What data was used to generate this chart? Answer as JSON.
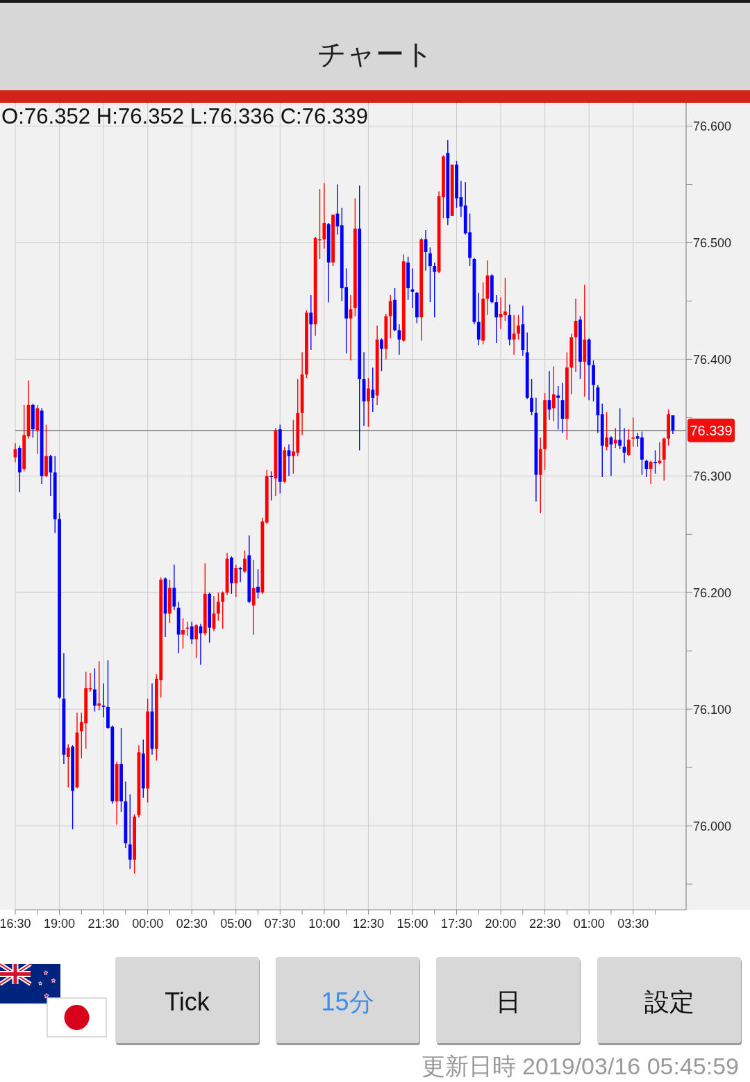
{
  "chart_data": {
    "type": "candlestick",
    "title": "チャート",
    "subtitle": "O:76.352 H:76.352 L:76.336 C:76.339",
    "x": [
      "2019-03-14T16:30",
      "2019-03-14T16:45",
      "2019-03-14T17:00",
      "2019-03-14T17:15",
      "2019-03-14T17:30",
      "2019-03-14T17:45",
      "2019-03-14T18:00",
      "2019-03-14T18:15",
      "2019-03-14T18:30",
      "2019-03-14T18:45",
      "2019-03-14T19:00",
      "2019-03-14T19:15",
      "2019-03-14T19:30",
      "2019-03-14T19:45",
      "2019-03-14T20:00",
      "2019-03-14T20:15",
      "2019-03-14T20:30",
      "2019-03-14T20:45",
      "2019-03-14T21:00",
      "2019-03-14T21:15",
      "2019-03-14T21:30",
      "2019-03-14T21:45",
      "2019-03-14T22:00",
      "2019-03-14T22:15",
      "2019-03-14T22:30",
      "2019-03-14T22:45",
      "2019-03-14T23:00",
      "2019-03-14T23:15",
      "2019-03-14T23:30",
      "2019-03-14T23:45",
      "2019-03-15T00:00",
      "2019-03-15T00:15",
      "2019-03-15T00:30",
      "2019-03-15T00:45",
      "2019-03-15T01:00",
      "2019-03-15T01:15",
      "2019-03-15T01:30",
      "2019-03-15T01:45",
      "2019-03-15T02:00",
      "2019-03-15T02:15",
      "2019-03-15T02:30",
      "2019-03-15T02:45",
      "2019-03-15T03:00",
      "2019-03-15T03:15",
      "2019-03-15T03:30",
      "2019-03-15T03:45",
      "2019-03-15T04:00",
      "2019-03-15T04:15",
      "2019-03-15T04:30",
      "2019-03-15T04:45",
      "2019-03-15T05:00",
      "2019-03-15T05:15",
      "2019-03-15T05:30",
      "2019-03-15T05:45",
      "2019-03-15T06:00",
      "2019-03-15T06:15",
      "2019-03-15T06:30",
      "2019-03-15T06:45",
      "2019-03-15T07:00",
      "2019-03-15T07:15",
      "2019-03-15T07:30",
      "2019-03-15T07:45",
      "2019-03-15T08:00",
      "2019-03-15T08:15",
      "2019-03-15T08:30",
      "2019-03-15T08:45",
      "2019-03-15T09:00",
      "2019-03-15T09:15",
      "2019-03-15T09:30",
      "2019-03-15T09:45",
      "2019-03-15T10:00",
      "2019-03-15T10:15",
      "2019-03-15T10:30",
      "2019-03-15T10:45",
      "2019-03-15T11:00",
      "2019-03-15T11:15",
      "2019-03-15T11:30",
      "2019-03-15T11:45",
      "2019-03-15T12:00",
      "2019-03-15T12:15",
      "2019-03-15T12:30",
      "2019-03-15T12:45",
      "2019-03-15T13:00",
      "2019-03-15T13:15",
      "2019-03-15T13:30",
      "2019-03-15T13:45",
      "2019-03-15T14:00",
      "2019-03-15T14:15",
      "2019-03-15T14:30",
      "2019-03-15T14:45",
      "2019-03-15T15:00",
      "2019-03-15T15:15",
      "2019-03-15T15:30",
      "2019-03-15T15:45",
      "2019-03-15T16:00",
      "2019-03-15T16:15",
      "2019-03-15T16:30",
      "2019-03-15T16:45",
      "2019-03-15T17:00",
      "2019-03-15T17:15",
      "2019-03-15T17:30",
      "2019-03-15T17:45",
      "2019-03-15T18:00",
      "2019-03-15T18:15",
      "2019-03-15T18:30",
      "2019-03-15T18:45",
      "2019-03-15T19:00",
      "2019-03-15T19:15",
      "2019-03-15T19:30",
      "2019-03-15T19:45",
      "2019-03-15T20:00",
      "2019-03-15T20:15",
      "2019-03-15T20:30",
      "2019-03-15T20:45",
      "2019-03-15T21:00",
      "2019-03-15T21:15",
      "2019-03-15T21:30",
      "2019-03-15T21:45",
      "2019-03-15T22:00",
      "2019-03-15T22:15",
      "2019-03-15T22:30",
      "2019-03-15T22:45",
      "2019-03-15T23:00",
      "2019-03-15T23:15",
      "2019-03-15T23:30",
      "2019-03-15T23:45",
      "2019-03-16T00:00",
      "2019-03-16T00:15",
      "2019-03-16T00:30",
      "2019-03-16T00:45",
      "2019-03-16T01:00",
      "2019-03-16T01:15",
      "2019-03-16T01:30",
      "2019-03-16T01:45",
      "2019-03-16T02:00",
      "2019-03-16T02:15",
      "2019-03-16T02:30",
      "2019-03-16T02:45",
      "2019-03-16T03:00",
      "2019-03-16T03:15",
      "2019-03-16T03:30",
      "2019-03-16T03:45",
      "2019-03-16T04:00",
      "2019-03-16T04:15",
      "2019-03-16T04:30",
      "2019-03-16T04:45",
      "2019-03-16T05:00",
      "2019-03-16T05:15",
      "2019-03-16T05:30",
      "2019-03-16T05:45"
    ],
    "ohlc": [
      [
        76.316,
        76.328,
        76.312,
        76.323
      ],
      [
        76.324,
        76.326,
        76.286,
        76.303
      ],
      [
        76.306,
        76.361,
        76.304,
        76.335
      ],
      [
        76.334,
        76.382,
        76.332,
        76.361
      ],
      [
        76.361,
        76.362,
        76.333,
        76.34
      ],
      [
        76.339,
        76.361,
        76.319,
        76.358
      ],
      [
        76.356,
        76.358,
        76.293,
        76.3
      ],
      [
        76.3,
        76.344,
        76.299,
        76.317
      ],
      [
        76.317,
        76.318,
        76.283,
        76.303
      ],
      [
        76.303,
        76.317,
        76.251,
        76.263
      ],
      [
        76.263,
        76.268,
        76.109,
        76.11
      ],
      [
        76.109,
        76.148,
        76.053,
        76.061
      ],
      [
        76.059,
        76.07,
        76.033,
        76.067
      ],
      [
        76.068,
        76.069,
        75.997,
        76.03
      ],
      [
        76.033,
        76.097,
        76.032,
        76.08
      ],
      [
        76.081,
        76.097,
        76.058,
        76.089
      ],
      [
        76.088,
        76.132,
        76.066,
        76.118
      ],
      [
        76.117,
        76.131,
        76.115,
        76.118
      ],
      [
        76.117,
        76.135,
        76.098,
        76.103
      ],
      [
        76.103,
        76.141,
        76.099,
        76.105
      ],
      [
        76.103,
        76.122,
        76.093,
        76.102
      ],
      [
        76.102,
        76.142,
        76.083,
        76.084
      ],
      [
        76.085,
        76.086,
        76.019,
        76.021
      ],
      [
        76.021,
        76.055,
        76.001,
        76.053
      ],
      [
        76.053,
        76.084,
        76.012,
        76.021
      ],
      [
        76.021,
        76.038,
        75.981,
        75.985
      ],
      [
        75.984,
        76.027,
        75.963,
        75.971
      ],
      [
        75.971,
        76.01,
        75.959,
        76.008
      ],
      [
        76.009,
        76.069,
        76.007,
        76.063
      ],
      [
        76.062,
        76.074,
        76.024,
        76.032
      ],
      [
        76.032,
        76.109,
        76.02,
        76.098
      ],
      [
        76.098,
        76.122,
        76.061,
        76.066
      ],
      [
        76.066,
        76.13,
        76.056,
        76.126
      ],
      [
        76.125,
        76.213,
        76.11,
        76.211
      ],
      [
        76.212,
        76.213,
        76.162,
        76.182
      ],
      [
        76.182,
        76.211,
        76.174,
        76.204
      ],
      [
        76.204,
        76.224,
        76.185,
        76.188
      ],
      [
        76.187,
        76.192,
        76.148,
        76.164
      ],
      [
        76.164,
        76.178,
        76.152,
        76.168
      ],
      [
        76.169,
        76.175,
        76.163,
        76.17
      ],
      [
        76.171,
        76.175,
        76.156,
        76.16
      ],
      [
        76.16,
        76.173,
        76.144,
        76.172
      ],
      [
        76.171,
        76.173,
        76.138,
        76.165
      ],
      [
        76.165,
        76.225,
        76.163,
        76.199
      ],
      [
        76.199,
        76.2,
        76.157,
        76.17
      ],
      [
        76.169,
        76.197,
        76.167,
        76.182
      ],
      [
        76.182,
        76.2,
        76.176,
        76.192
      ],
      [
        76.192,
        76.201,
        76.169,
        76.2
      ],
      [
        76.2,
        76.234,
        76.198,
        76.229
      ],
      [
        76.23,
        76.231,
        76.199,
        76.208
      ],
      [
        76.208,
        76.224,
        76.196,
        76.221
      ],
      [
        76.221,
        76.222,
        76.209,
        76.22
      ],
      [
        76.218,
        76.236,
        76.217,
        76.229
      ],
      [
        76.232,
        76.249,
        76.191,
        76.192
      ],
      [
        76.189,
        76.228,
        76.164,
        76.204
      ],
      [
        76.205,
        76.22,
        76.195,
        76.2
      ],
      [
        76.2,
        76.264,
        76.199,
        76.261
      ],
      [
        76.26,
        76.305,
        76.259,
        76.3
      ],
      [
        76.3,
        76.304,
        76.279,
        76.299
      ],
      [
        76.298,
        76.341,
        76.283,
        76.339
      ],
      [
        76.34,
        76.344,
        76.285,
        76.295
      ],
      [
        76.295,
        76.325,
        76.294,
        76.322
      ],
      [
        76.322,
        76.327,
        76.3,
        76.317
      ],
      [
        76.317,
        76.348,
        76.302,
        76.321
      ],
      [
        76.32,
        76.383,
        76.317,
        76.354
      ],
      [
        76.354,
        76.406,
        76.335,
        76.387
      ],
      [
        76.387,
        76.442,
        76.384,
        76.44
      ],
      [
        76.44,
        76.455,
        76.408,
        76.43
      ],
      [
        76.43,
        76.505,
        76.42,
        76.504
      ],
      [
        76.502,
        76.546,
        76.486,
        76.503
      ],
      [
        76.503,
        76.551,
        76.495,
        76.517
      ],
      [
        76.516,
        76.517,
        76.449,
        76.483
      ],
      [
        76.483,
        76.524,
        76.48,
        76.524
      ],
      [
        76.525,
        76.55,
        76.507,
        76.514
      ],
      [
        76.515,
        76.53,
        76.45,
        76.461
      ],
      [
        76.462,
        76.478,
        76.405,
        76.435
      ],
      [
        76.435,
        76.455,
        76.399,
        76.443
      ],
      [
        76.444,
        76.538,
        76.437,
        76.512
      ],
      [
        76.512,
        76.549,
        76.322,
        76.383
      ],
      [
        76.383,
        76.406,
        76.343,
        76.364
      ],
      [
        76.364,
        76.384,
        76.342,
        76.375
      ],
      [
        76.374,
        76.393,
        76.355,
        76.367
      ],
      [
        76.369,
        76.429,
        76.361,
        76.417
      ],
      [
        76.417,
        76.418,
        76.39,
        76.409
      ],
      [
        76.409,
        76.439,
        76.4,
        76.437
      ],
      [
        76.437,
        76.455,
        76.418,
        76.45
      ],
      [
        76.451,
        76.461,
        76.424,
        76.425
      ],
      [
        76.425,
        76.43,
        76.404,
        76.417
      ],
      [
        76.416,
        76.49,
        76.415,
        76.484
      ],
      [
        76.483,
        76.488,
        76.451,
        76.461
      ],
      [
        76.46,
        76.478,
        76.444,
        76.458
      ],
      [
        76.457,
        76.458,
        76.431,
        76.436
      ],
      [
        76.436,
        76.504,
        76.416,
        76.503
      ],
      [
        76.503,
        76.511,
        76.476,
        76.492
      ],
      [
        76.491,
        76.496,
        76.449,
        76.48
      ],
      [
        76.48,
        76.483,
        76.436,
        76.475
      ],
      [
        76.475,
        76.544,
        76.474,
        76.54
      ],
      [
        76.539,
        76.575,
        76.521,
        76.574
      ],
      [
        76.577,
        76.588,
        76.515,
        76.521
      ],
      [
        76.523,
        76.567,
        76.523,
        76.567
      ],
      [
        76.567,
        76.57,
        76.53,
        76.538
      ],
      [
        76.539,
        76.553,
        76.522,
        76.531
      ],
      [
        76.532,
        76.552,
        76.507,
        76.508
      ],
      [
        76.509,
        76.525,
        76.48,
        76.487
      ],
      [
        76.486,
        76.487,
        76.43,
        76.432
      ],
      [
        76.432,
        76.457,
        76.412,
        76.417
      ],
      [
        76.416,
        76.466,
        76.413,
        76.452
      ],
      [
        76.452,
        76.485,
        76.438,
        76.472
      ],
      [
        76.472,
        76.473,
        76.448,
        76.449
      ],
      [
        76.449,
        76.455,
        76.414,
        76.436
      ],
      [
        76.436,
        76.453,
        76.426,
        76.439
      ],
      [
        76.438,
        76.47,
        76.433,
        76.441
      ],
      [
        76.438,
        76.447,
        76.412,
        76.417
      ],
      [
        76.417,
        76.438,
        76.404,
        76.422
      ],
      [
        76.422,
        76.438,
        76.417,
        76.429
      ],
      [
        76.43,
        76.446,
        76.403,
        76.408
      ],
      [
        76.406,
        76.423,
        76.366,
        76.367
      ],
      [
        76.367,
        76.383,
        76.352,
        76.355
      ],
      [
        76.354,
        76.367,
        76.278,
        76.301
      ],
      [
        76.301,
        76.333,
        76.268,
        76.323
      ],
      [
        76.323,
        76.371,
        76.305,
        76.365
      ],
      [
        76.365,
        76.39,
        76.348,
        76.357
      ],
      [
        76.358,
        76.394,
        76.347,
        76.37
      ],
      [
        76.369,
        76.377,
        76.34,
        76.367
      ],
      [
        76.365,
        76.38,
        76.337,
        76.349
      ],
      [
        76.349,
        76.406,
        76.331,
        76.393
      ],
      [
        76.393,
        76.422,
        76.37,
        76.419
      ],
      [
        76.419,
        76.452,
        76.389,
        76.433
      ],
      [
        76.434,
        76.437,
        76.383,
        76.398
      ],
      [
        76.398,
        76.464,
        76.368,
        76.417
      ],
      [
        76.417,
        76.418,
        76.365,
        76.395
      ],
      [
        76.395,
        76.399,
        76.364,
        76.378
      ],
      [
        76.376,
        76.378,
        76.337,
        76.352
      ],
      [
        76.353,
        76.362,
        76.299,
        76.326
      ],
      [
        76.325,
        76.355,
        76.322,
        76.333
      ],
      [
        76.333,
        76.334,
        76.3,
        76.327
      ],
      [
        76.328,
        76.341,
        76.324,
        76.331
      ],
      [
        76.331,
        76.358,
        76.323,
        76.326
      ],
      [
        76.325,
        76.341,
        76.311,
        76.32
      ],
      [
        76.318,
        76.34,
        76.317,
        76.331
      ],
      [
        76.332,
        76.35,
        76.325,
        76.333
      ],
      [
        76.334,
        76.337,
        76.325,
        76.332
      ],
      [
        76.333,
        76.338,
        76.301,
        76.314
      ],
      [
        76.313,
        76.314,
        76.299,
        76.306
      ],
      [
        76.306,
        76.313,
        76.293,
        76.312
      ],
      [
        76.312,
        76.322,
        76.302,
        76.311
      ],
      [
        76.311,
        76.329,
        76.31,
        76.313
      ],
      [
        76.314,
        76.333,
        76.296,
        76.332
      ],
      [
        76.332,
        76.357,
        76.326,
        76.353
      ],
      [
        76.352,
        76.352,
        76.336,
        76.339
      ]
    ],
    "colors": [
      "#ff0000",
      "#0000ff",
      "#ff0000",
      "#ff0000",
      "#0000ff",
      "#ff0000",
      "#0000ff",
      "#ff0000",
      "#0000ff",
      "#0000ff",
      "#0000ff",
      "#0000ff",
      "#ff0000",
      "#0000ff",
      "#ff0000",
      "#ff0000",
      "#ff0000",
      "#ff0000",
      "#0000ff",
      "#ff0000",
      "#0000ff",
      "#0000ff",
      "#0000ff",
      "#ff0000",
      "#0000ff",
      "#0000ff",
      "#0000ff",
      "#ff0000",
      "#ff0000",
      "#0000ff",
      "#ff0000",
      "#0000ff",
      "#ff0000",
      "#ff0000",
      "#0000ff",
      "#ff0000",
      "#0000ff",
      "#0000ff",
      "#ff0000",
      "#ff0000",
      "#0000ff",
      "#ff0000",
      "#0000ff",
      "#ff0000",
      "#0000ff",
      "#ff0000",
      "#ff0000",
      "#ff0000",
      "#ff0000",
      "#0000ff",
      "#ff0000",
      "#0000ff",
      "#ff0000",
      "#0000ff",
      "#ff0000",
      "#0000ff",
      "#ff0000",
      "#ff0000",
      "#0000ff",
      "#ff0000",
      "#0000ff",
      "#ff0000",
      "#0000ff",
      "#ff0000",
      "#ff0000",
      "#ff0000",
      "#ff0000",
      "#0000ff",
      "#ff0000",
      "#ff0000",
      "#ff0000",
      "#0000ff",
      "#ff0000",
      "#0000ff",
      "#0000ff",
      "#0000ff",
      "#ff0000",
      "#ff0000",
      "#0000ff",
      "#0000ff",
      "#ff0000",
      "#0000ff",
      "#ff0000",
      "#0000ff",
      "#ff0000",
      "#ff0000",
      "#0000ff",
      "#0000ff",
      "#ff0000",
      "#0000ff",
      "#0000ff",
      "#0000ff",
      "#ff0000",
      "#0000ff",
      "#0000ff",
      "#0000ff",
      "#ff0000",
      "#ff0000",
      "#0000ff",
      "#ff0000",
      "#0000ff",
      "#0000ff",
      "#0000ff",
      "#0000ff",
      "#0000ff",
      "#0000ff",
      "#ff0000",
      "#ff0000",
      "#0000ff",
      "#0000ff",
      "#ff0000",
      "#ff0000",
      "#0000ff",
      "#ff0000",
      "#ff0000",
      "#0000ff",
      "#0000ff",
      "#0000ff",
      "#0000ff",
      "#ff0000",
      "#ff0000",
      "#0000ff",
      "#ff0000",
      "#0000ff",
      "#0000ff",
      "#ff0000",
      "#ff0000",
      "#ff0000",
      "#0000ff",
      "#ff0000",
      "#0000ff",
      "#0000ff",
      "#0000ff",
      "#0000ff",
      "#ff0000",
      "#0000ff",
      "#ff0000",
      "#0000ff",
      "#0000ff",
      "#ff0000",
      "#ff0000",
      "#0000ff",
      "#0000ff",
      "#0000ff",
      "#ff0000",
      "#0000ff",
      "#ff0000",
      "#ff0000",
      "#ff0000",
      "#0000ff"
    ],
    "xlim": [
      "2019-03-14T16:30",
      "2019-03-16T06:30"
    ],
    "xticks": [
      {
        "value": "2019-03-14T16:30",
        "label": "16:30"
      },
      {
        "value": "2019-03-14T17:45",
        "label": null
      },
      {
        "value": "2019-03-14T19:00",
        "label": "19:00"
      },
      {
        "value": "2019-03-14T20:15",
        "label": null
      },
      {
        "value": "2019-03-14T21:30",
        "label": "21:30"
      },
      {
        "value": "2019-03-14T22:45",
        "label": null
      },
      {
        "value": "2019-03-15T00:00",
        "label": "00:00"
      },
      {
        "value": "2019-03-15T01:15",
        "label": null
      },
      {
        "value": "2019-03-15T02:30",
        "label": "02:30"
      },
      {
        "value": "2019-03-15T03:45",
        "label": null
      },
      {
        "value": "2019-03-15T05:00",
        "label": "05:00"
      },
      {
        "value": "2019-03-15T06:15",
        "label": null
      },
      {
        "value": "2019-03-15T07:30",
        "label": "07:30"
      },
      {
        "value": "2019-03-15T08:45",
        "label": null
      },
      {
        "value": "2019-03-15T10:00",
        "label": "10:00"
      },
      {
        "value": "2019-03-15T11:15",
        "label": null
      },
      {
        "value": "2019-03-15T12:30",
        "label": "12:30"
      },
      {
        "value": "2019-03-15T13:45",
        "label": null
      },
      {
        "value": "2019-03-15T15:00",
        "label": "15:00"
      },
      {
        "value": "2019-03-15T16:15",
        "label": null
      },
      {
        "value": "2019-03-15T17:30",
        "label": "17:30"
      },
      {
        "value": "2019-03-15T18:45",
        "label": null
      },
      {
        "value": "2019-03-15T20:00",
        "label": "20:00"
      },
      {
        "value": "2019-03-15T21:15",
        "label": null
      },
      {
        "value": "2019-03-15T22:30",
        "label": "22:30"
      },
      {
        "value": "2019-03-15T23:45",
        "label": null
      },
      {
        "value": "2019-03-16T01:00",
        "label": "01:00"
      },
      {
        "value": "2019-03-16T02:15",
        "label": null
      },
      {
        "value": "2019-03-16T03:30",
        "label": "03:30"
      },
      {
        "value": "2019-03-16T04:45",
        "label": null
      }
    ],
    "ylim": [
      75.928,
      76.62
    ],
    "yticks": [
      {
        "value": 75.95,
        "label": null
      },
      {
        "value": 76.0,
        "label": "76.000"
      },
      {
        "value": 76.05,
        "label": null
      },
      {
        "value": 76.1,
        "label": "76.100"
      },
      {
        "value": 76.15,
        "label": null
      },
      {
        "value": 76.2,
        "label": "76.200"
      },
      {
        "value": 76.25,
        "label": null
      },
      {
        "value": 76.3,
        "label": "76.300"
      },
      {
        "value": 76.35,
        "label": null
      },
      {
        "value": 76.4,
        "label": "76.400"
      },
      {
        "value": 76.45,
        "label": null
      },
      {
        "value": 76.5,
        "label": "76.500"
      },
      {
        "value": 76.55,
        "label": null
      },
      {
        "value": 76.6,
        "label": "76.600"
      }
    ],
    "grid": true,
    "ref_lines": [
      {
        "axis": "y",
        "value": 76.339,
        "label": "76.339",
        "color": "#8c8c8c"
      }
    ],
    "annotations": [
      "Tick",
      "15分",
      "日",
      "設定",
      "更新日時 2019/03/16 05:45:59"
    ]
  }
}
